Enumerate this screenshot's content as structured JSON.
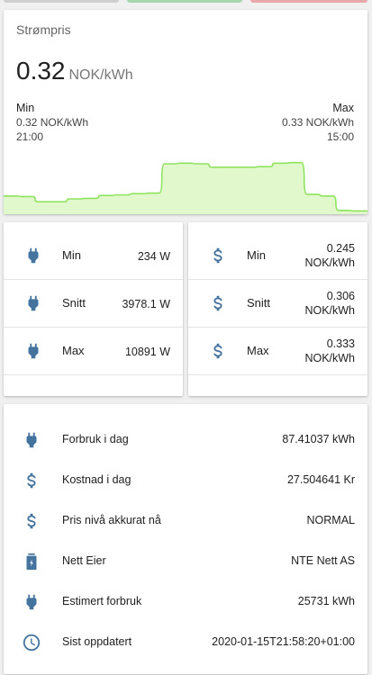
{
  "colors": {
    "icon": "#44739e",
    "chart_line": "#8fe35f",
    "chart_fill": "#e0f8cc",
    "top_strip": [
      "#cfcfcf",
      "#a7d7b0",
      "#e8a7a9"
    ]
  },
  "price_card": {
    "title": "Strømpris",
    "current_value": "0.32",
    "current_unit": "NOK/kWh",
    "min": {
      "heading": "Min",
      "value": "0.32 NOK/kWh",
      "time": "21:00"
    },
    "max": {
      "heading": "Max",
      "value": "0.33 NOK/kWh",
      "time": "15:00"
    }
  },
  "chart_data": {
    "type": "area",
    "series": [
      {
        "values": [
          0.3,
          0.29,
          0.2,
          0.2,
          0.25,
          0.26,
          0.31,
          0.32,
          0.34,
          0.35,
          0.86,
          0.87,
          0.86,
          0.8,
          0.8,
          0.8,
          0.81,
          0.87,
          0.88,
          0.33,
          0.3,
          0.05,
          0.04
        ]
      }
    ]
  },
  "power_card": {
    "rows": [
      {
        "icon": "power-plug-icon",
        "label": "Min",
        "value": "234 W"
      },
      {
        "icon": "power-plug-icon",
        "label": "Snitt",
        "value": "3978.1 W"
      },
      {
        "icon": "power-plug-icon",
        "label": "Max",
        "value": "10891 W"
      }
    ]
  },
  "cost_card": {
    "rows": [
      {
        "icon": "dollar-icon",
        "label": "Min",
        "value_line1": "0.245",
        "value_line2": "NOK/kWh"
      },
      {
        "icon": "dollar-icon",
        "label": "Snitt",
        "value_line1": "0.306",
        "value_line2": "NOK/kWh"
      },
      {
        "icon": "dollar-icon",
        "label": "Max",
        "value_line1": "0.333",
        "value_line2": "NOK/kWh"
      }
    ]
  },
  "info_card": {
    "rows": [
      {
        "icon": "power-plug-icon",
        "label": "Forbruk i dag",
        "value": "87.41037 kWh"
      },
      {
        "icon": "dollar-icon",
        "label": "Kostnad i dag",
        "value": "27.504641 Kr"
      },
      {
        "icon": "dollar-icon",
        "label": "Pris nivå akkurat nå",
        "value": "NORMAL"
      },
      {
        "icon": "transmission-tower-icon",
        "label": "Nett Eier",
        "value": "NTE Nett AS"
      },
      {
        "icon": "power-plug-icon",
        "label": "Estimert forbruk",
        "value": "25731 kWh"
      },
      {
        "icon": "clock-icon",
        "label": "Sist oppdatert",
        "value": "2020-01-15T21:58:20+01:00"
      }
    ]
  }
}
